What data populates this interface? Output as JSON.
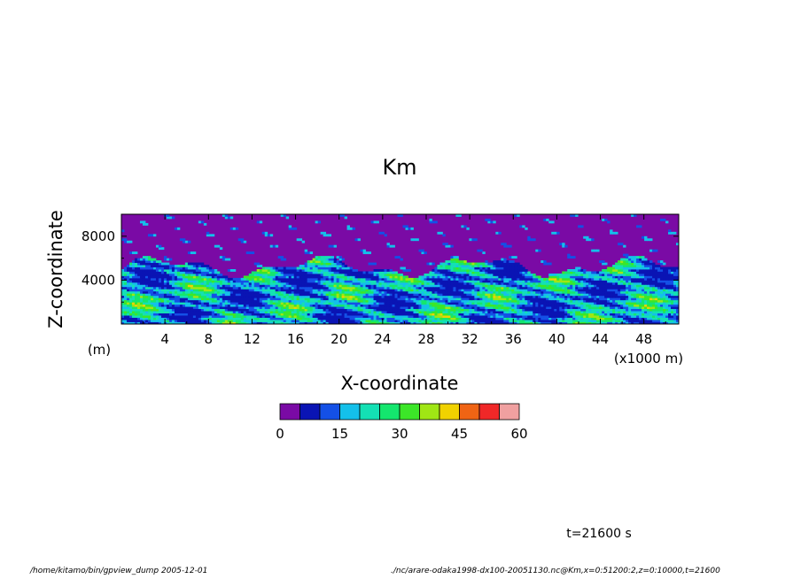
{
  "chart_data": {
    "type": "heatmap",
    "title": "Km",
    "xlabel": "X-coordinate",
    "ylabel": "Z-coordinate",
    "x_unit": "(x1000 m)",
    "y_unit": "(m)",
    "x_ticks": [
      "4",
      "8",
      "12",
      "16",
      "20",
      "24",
      "28",
      "32",
      "36",
      "40",
      "44",
      "48"
    ],
    "y_ticks": [
      "4000",
      "8000"
    ],
    "xlim": [
      0,
      51.2
    ],
    "ylim": [
      0,
      10000
    ],
    "colorbar": {
      "range": [
        0,
        60
      ],
      "step": 5,
      "labels": [
        "0",
        "15",
        "30",
        "45",
        "60"
      ],
      "colors": [
        "#7a0aa5",
        "#0a14b4",
        "#1450e6",
        "#14c0ea",
        "#14e0b4",
        "#14e66e",
        "#3ce628",
        "#a0e614",
        "#f0d200",
        "#f06414",
        "#f02828",
        "#f0a0a0"
      ]
    },
    "time_label": "t=21600 s"
  },
  "footer": {
    "left": "/home/kitamo/bin/gpview_dump  2005-12-01",
    "right": "./nc/arare-odaka1998-dx100-20051130.nc@Km,x=0:51200:2,z=0:10000,t=21600"
  }
}
